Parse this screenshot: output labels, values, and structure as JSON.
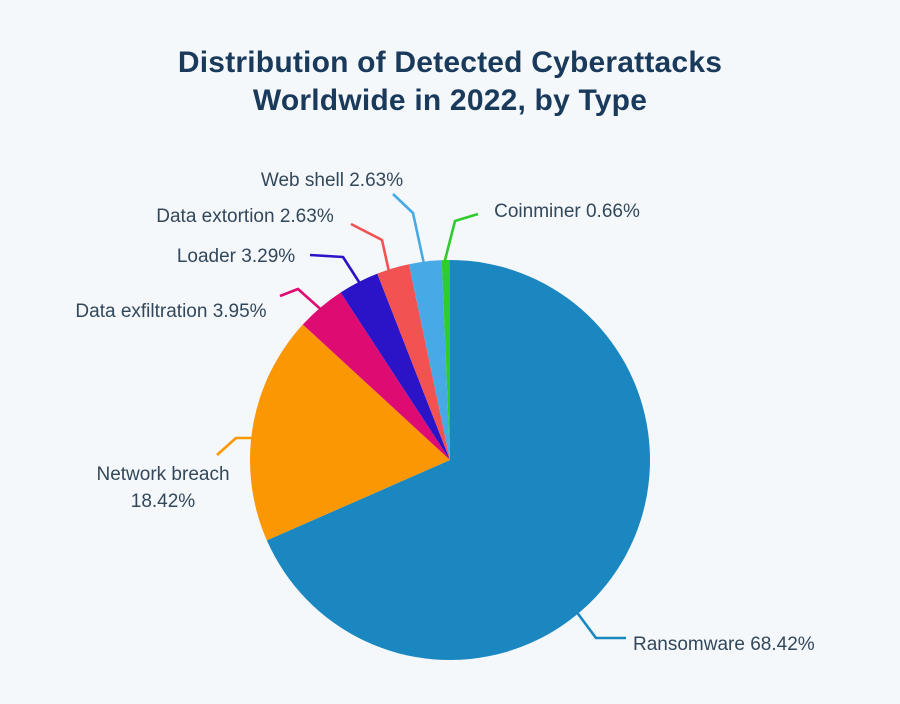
{
  "page": {
    "background_color": "#f4f8fb"
  },
  "header": {
    "title_line1": "Distribution of Detected Cyberattacks",
    "title_line2": "Worldwide in 2022, by Type",
    "title_color": "#1a3a5c"
  },
  "chart_data": {
    "type": "pie",
    "title": "Distribution of Detected Cyberattacks Worldwide in 2022, by Type",
    "unit": "percent",
    "direction": "clockwise",
    "start_angle_deg_from_top": 0,
    "legend_position": "callout-labels",
    "categories": [
      "Ransomware",
      "Network breach",
      "Data exfiltration",
      "Loader",
      "Data extortion",
      "Web shell",
      "Coinminer"
    ],
    "values": [
      68.42,
      18.42,
      3.95,
      3.29,
      2.63,
      2.63,
      0.66
    ],
    "label_text_color": "#33475b",
    "slices": [
      {
        "label": "Ransomware",
        "value": 68.42,
        "display": "Ransomware 68.42%",
        "color": "#1B87C0"
      },
      {
        "label": "Network breach",
        "value": 18.42,
        "display": "Network breach 18.42%",
        "color": "#FB9703"
      },
      {
        "label": "Data exfiltration",
        "value": 3.95,
        "display": "Data exfiltration 3.95%",
        "color": "#DE0B72"
      },
      {
        "label": "Loader",
        "value": 3.29,
        "display": "Loader 3.29%",
        "color": "#2B13C8"
      },
      {
        "label": "Data extortion",
        "value": 2.63,
        "display": "Data extortion 2.63%",
        "color": "#F25252"
      },
      {
        "label": "Web shell",
        "value": 2.63,
        "display": "Web shell 2.63%",
        "color": "#47A9E5"
      },
      {
        "label": "Coinminer",
        "value": 0.66,
        "display": "Coinminer 0.66%",
        "color": "#2ECC2E"
      }
    ]
  }
}
